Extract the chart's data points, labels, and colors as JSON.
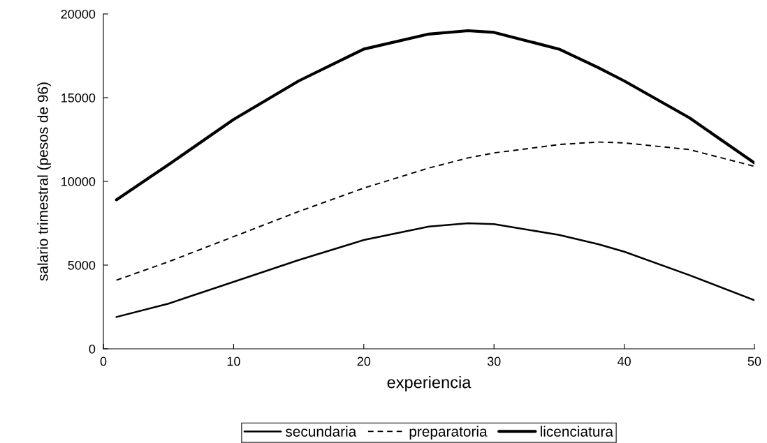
{
  "chart_data": {
    "type": "line",
    "xlabel": "experiencia",
    "ylabel": "salario trimestral (pesos de 96)",
    "x": [
      1,
      5,
      10,
      15,
      20,
      25,
      28,
      30,
      35,
      38,
      40,
      45,
      50
    ],
    "series": [
      {
        "name": "secundaria",
        "color": "#000000",
        "line_style": "solid",
        "values": [
          1900,
          2700,
          4000,
          5300,
          6500,
          7300,
          7500,
          7450,
          6800,
          6250,
          5800,
          4400,
          2900
        ]
      },
      {
        "name": "preparatoria",
        "color": "#000000",
        "line_style": "dashed",
        "values": [
          4100,
          5200,
          6700,
          8200,
          9600,
          10800,
          11400,
          11700,
          12200,
          12350,
          12300,
          11900,
          10900
        ]
      },
      {
        "name": "licenciatura",
        "color": "#000000",
        "line_style": "solid",
        "values": [
          8900,
          11000,
          13700,
          16000,
          17900,
          18800,
          19000,
          18900,
          17900,
          16800,
          16000,
          13800,
          11100
        ]
      }
    ],
    "xlim": [
      0,
      50
    ],
    "xticks": [
      0,
      10,
      20,
      30,
      40,
      50
    ],
    "ylim": [
      0,
      20000
    ],
    "yticks": [
      0,
      5000,
      10000,
      15000,
      20000
    ],
    "grid": false,
    "legend": "bottom",
    "marker": "none"
  }
}
